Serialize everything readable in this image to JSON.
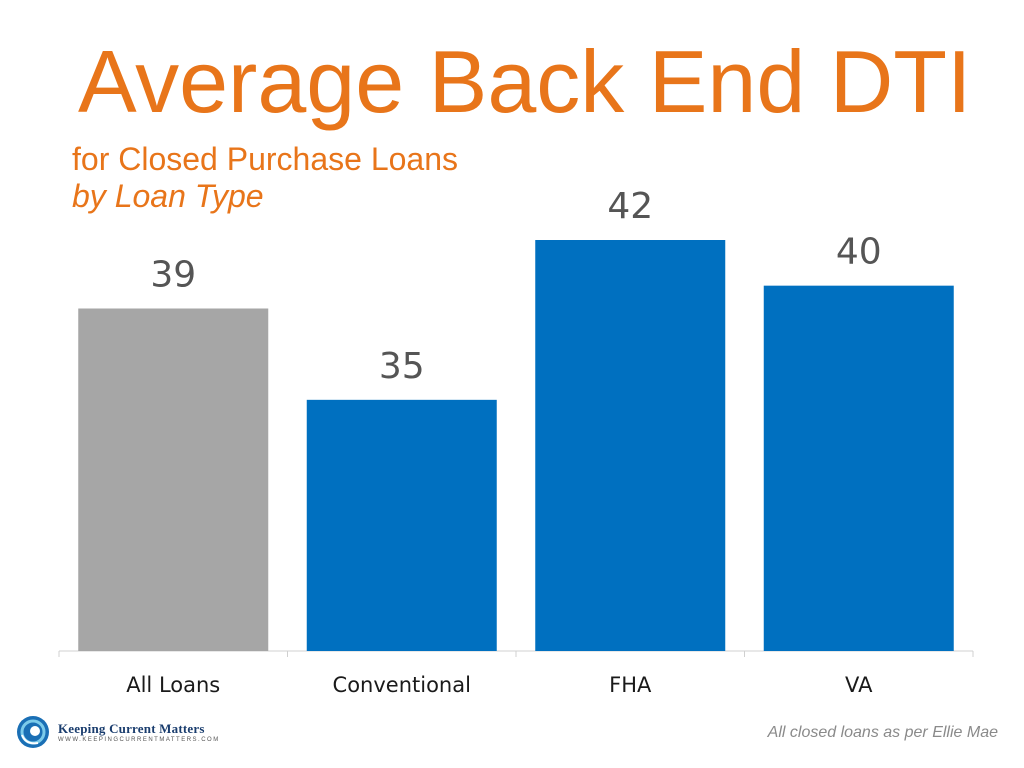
{
  "header": {
    "title": "Average Back End DTI",
    "subtitle_line1": "for Closed Purchase Loans",
    "subtitle_line2": "by Loan Type"
  },
  "footer": {
    "logo_name": "Keeping Current Matters",
    "logo_url": "WWW.KEEPINGCURRENTMATTERS.COM",
    "source": "All closed loans as per Ellie Mae"
  },
  "colors": {
    "title": "#e8751a",
    "highlight_bar": "#a6a6a6",
    "bar": "#0070c0",
    "value_label": "#555555"
  },
  "chart_data": {
    "type": "bar",
    "title": "Average Back End DTI",
    "subtitle": "for Closed Purchase Loans by Loan Type",
    "categories": [
      "All Loans",
      "Conventional",
      "FHA",
      "VA"
    ],
    "values": [
      39,
      35,
      42,
      40
    ],
    "data_labels": [
      "39",
      "35",
      "42",
      "40"
    ],
    "bar_colors": [
      "#a6a6a6",
      "#0070c0",
      "#0070c0",
      "#0070c0"
    ],
    "xlabel": "",
    "ylabel": "",
    "ylim": [
      24,
      42
    ],
    "grid": false,
    "legend": "none"
  }
}
